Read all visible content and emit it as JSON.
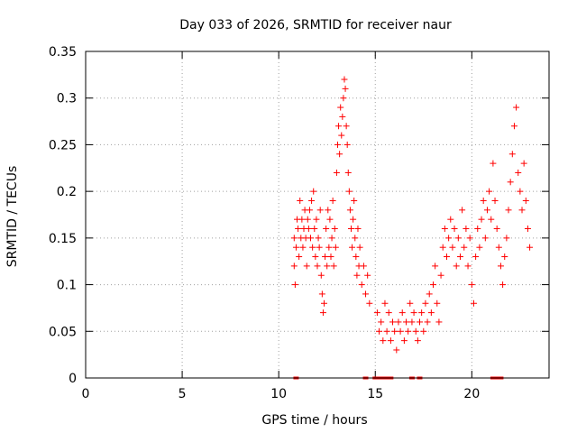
{
  "chart_data": {
    "type": "scatter",
    "title": "Day 033 of 2026, SRMTID for receiver naur",
    "xlabel": "GPS time / hours",
    "ylabel": "SRMTID / TECUs",
    "xlim": [
      0,
      24
    ],
    "ylim": [
      0,
      0.35
    ],
    "x_ticks": [
      0,
      5,
      10,
      15,
      20
    ],
    "y_ticks": [
      0,
      0.05,
      0.1,
      0.15,
      0.2,
      0.25,
      0.3,
      0.35
    ],
    "x_tick_labels": [
      "0",
      "5",
      "10",
      "15",
      "20"
    ],
    "y_tick_labels": [
      "0",
      "0.05",
      "0.1",
      "0.15",
      "0.2",
      "0.25",
      "0.3",
      "0.35"
    ],
    "grid": true,
    "marker": "+",
    "color": "#ff0000",
    "series": [
      {
        "values_xy": [
          [
            10.8,
            0.15
          ],
          [
            10.8,
            0.12
          ],
          [
            10.85,
            0.1
          ],
          [
            10.9,
            0.14
          ],
          [
            10.95,
            0.17
          ],
          [
            11.0,
            0.16
          ],
          [
            11.05,
            0.13
          ],
          [
            11.1,
            0.19
          ],
          [
            11.15,
            0.15
          ],
          [
            11.2,
            0.17
          ],
          [
            11.25,
            0.14
          ],
          [
            11.3,
            0.16
          ],
          [
            11.35,
            0.18
          ],
          [
            11.4,
            0.15
          ],
          [
            11.45,
            0.12
          ],
          [
            11.5,
            0.17
          ],
          [
            11.55,
            0.16
          ],
          [
            11.6,
            0.18
          ],
          [
            11.65,
            0.15
          ],
          [
            11.7,
            0.19
          ],
          [
            11.75,
            0.14
          ],
          [
            11.8,
            0.2
          ],
          [
            11.85,
            0.16
          ],
          [
            11.9,
            0.13
          ],
          [
            11.95,
            0.17
          ],
          [
            12.0,
            0.12
          ],
          [
            12.05,
            0.15
          ],
          [
            12.1,
            0.14
          ],
          [
            12.15,
            0.18
          ],
          [
            12.2,
            0.11
          ],
          [
            12.25,
            0.09
          ],
          [
            12.3,
            0.07
          ],
          [
            12.35,
            0.08
          ],
          [
            12.4,
            0.13
          ],
          [
            12.45,
            0.16
          ],
          [
            12.5,
            0.12
          ],
          [
            12.55,
            0.18
          ],
          [
            12.6,
            0.14
          ],
          [
            12.65,
            0.17
          ],
          [
            12.7,
            0.13
          ],
          [
            12.75,
            0.15
          ],
          [
            12.8,
            0.19
          ],
          [
            12.85,
            0.12
          ],
          [
            12.9,
            0.16
          ],
          [
            12.95,
            0.14
          ],
          [
            13.0,
            0.22
          ],
          [
            13.05,
            0.25
          ],
          [
            13.1,
            0.27
          ],
          [
            13.15,
            0.24
          ],
          [
            13.2,
            0.29
          ],
          [
            13.25,
            0.26
          ],
          [
            13.3,
            0.28
          ],
          [
            13.35,
            0.3
          ],
          [
            13.4,
            0.32
          ],
          [
            13.45,
            0.31
          ],
          [
            13.5,
            0.27
          ],
          [
            13.55,
            0.25
          ],
          [
            13.6,
            0.22
          ],
          [
            13.65,
            0.2
          ],
          [
            13.7,
            0.18
          ],
          [
            13.75,
            0.16
          ],
          [
            13.8,
            0.14
          ],
          [
            13.85,
            0.17
          ],
          [
            13.9,
            0.19
          ],
          [
            13.95,
            0.15
          ],
          [
            14.0,
            0.13
          ],
          [
            14.05,
            0.11
          ],
          [
            14.1,
            0.16
          ],
          [
            14.15,
            0.12
          ],
          [
            14.2,
            0.14
          ],
          [
            14.3,
            0.1
          ],
          [
            14.4,
            0.12
          ],
          [
            14.5,
            0.09
          ],
          [
            14.6,
            0.11
          ],
          [
            14.7,
            0.08
          ],
          [
            15.1,
            0.07
          ],
          [
            15.2,
            0.05
          ],
          [
            15.3,
            0.06
          ],
          [
            15.4,
            0.04
          ],
          [
            15.5,
            0.08
          ],
          [
            15.6,
            0.05
          ],
          [
            15.7,
            0.07
          ],
          [
            15.8,
            0.04
          ],
          [
            15.9,
            0.06
          ],
          [
            16.0,
            0.05
          ],
          [
            16.1,
            0.03
          ],
          [
            16.2,
            0.06
          ],
          [
            16.3,
            0.05
          ],
          [
            16.4,
            0.07
          ],
          [
            16.5,
            0.04
          ],
          [
            16.6,
            0.06
          ],
          [
            16.7,
            0.05
          ],
          [
            16.8,
            0.08
          ],
          [
            16.9,
            0.06
          ],
          [
            17.0,
            0.07
          ],
          [
            17.1,
            0.05
          ],
          [
            17.2,
            0.04
          ],
          [
            17.3,
            0.06
          ],
          [
            17.4,
            0.07
          ],
          [
            17.5,
            0.05
          ],
          [
            17.6,
            0.08
          ],
          [
            17.7,
            0.06
          ],
          [
            17.8,
            0.09
          ],
          [
            17.9,
            0.07
          ],
          [
            18.0,
            0.1
          ],
          [
            18.1,
            0.12
          ],
          [
            18.2,
            0.08
          ],
          [
            18.3,
            0.06
          ],
          [
            18.4,
            0.11
          ],
          [
            18.5,
            0.14
          ],
          [
            18.6,
            0.16
          ],
          [
            18.7,
            0.13
          ],
          [
            18.8,
            0.15
          ],
          [
            18.9,
            0.17
          ],
          [
            19.0,
            0.14
          ],
          [
            19.1,
            0.16
          ],
          [
            19.2,
            0.12
          ],
          [
            19.3,
            0.15
          ],
          [
            19.4,
            0.13
          ],
          [
            19.5,
            0.18
          ],
          [
            19.6,
            0.14
          ],
          [
            19.7,
            0.16
          ],
          [
            19.8,
            0.12
          ],
          [
            19.9,
            0.15
          ],
          [
            20.0,
            0.1
          ],
          [
            20.1,
            0.08
          ],
          [
            20.2,
            0.13
          ],
          [
            20.3,
            0.16
          ],
          [
            20.4,
            0.14
          ],
          [
            20.5,
            0.17
          ],
          [
            20.6,
            0.19
          ],
          [
            20.7,
            0.15
          ],
          [
            20.8,
            0.18
          ],
          [
            20.9,
            0.2
          ],
          [
            21.0,
            0.17
          ],
          [
            21.1,
            0.23
          ],
          [
            21.2,
            0.19
          ],
          [
            21.3,
            0.16
          ],
          [
            21.4,
            0.14
          ],
          [
            21.5,
            0.12
          ],
          [
            21.6,
            0.1
          ],
          [
            21.7,
            0.13
          ],
          [
            21.8,
            0.15
          ],
          [
            21.9,
            0.18
          ],
          [
            22.0,
            0.21
          ],
          [
            22.1,
            0.24
          ],
          [
            22.2,
            0.27
          ],
          [
            22.3,
            0.29
          ],
          [
            22.4,
            0.22
          ],
          [
            22.5,
            0.2
          ],
          [
            22.6,
            0.18
          ],
          [
            22.7,
            0.23
          ],
          [
            22.8,
            0.19
          ],
          [
            22.9,
            0.16
          ],
          [
            23.0,
            0.14
          ]
        ]
      }
    ],
    "zero_markers_x": [
      10.9,
      14.5,
      15.0,
      15.2,
      15.4,
      15.6,
      15.8,
      16.9,
      17.3,
      21.1,
      21.3,
      21.5
    ]
  }
}
